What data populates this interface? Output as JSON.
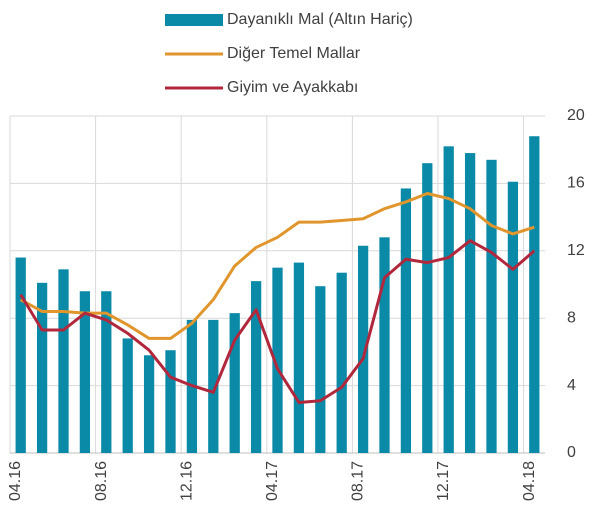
{
  "chart_data": {
    "type": "bar_line",
    "categories": [
      "04.16",
      null,
      null,
      null,
      "08.16",
      null,
      null,
      null,
      "12.16",
      null,
      null,
      null,
      "04.17",
      null,
      null,
      null,
      "08.17",
      null,
      null,
      null,
      "12.17",
      null,
      null,
      null,
      "04.18"
    ],
    "series": [
      {
        "name": "Dayanıklı Mal (Altın Hariç)",
        "type": "bar",
        "color": "#0b8aa8",
        "values": [
          11.6,
          10.1,
          10.9,
          9.6,
          9.6,
          6.8,
          5.8,
          6.1,
          7.9,
          7.9,
          8.3,
          10.2,
          11.0,
          11.3,
          9.9,
          10.7,
          12.3,
          12.8,
          15.7,
          17.2,
          18.2,
          17.8,
          17.4,
          16.1,
          18.8
        ]
      },
      {
        "name": "Diğer Temel Mallar",
        "type": "line",
        "color": "#e0962c",
        "values": [
          9.1,
          8.4,
          8.4,
          8.3,
          8.3,
          7.6,
          6.8,
          6.8,
          7.7,
          9.1,
          11.1,
          12.2,
          12.8,
          13.7,
          13.7,
          13.8,
          13.9,
          14.5,
          14.9,
          15.4,
          15.1,
          14.5,
          13.5,
          13.0,
          13.4
        ]
      },
      {
        "name": "Giyim ve Ayakkabı",
        "type": "line",
        "color": "#b1283d",
        "values": [
          9.4,
          7.3,
          7.3,
          8.3,
          7.9,
          7.1,
          6.1,
          4.5,
          4.0,
          3.6,
          6.7,
          8.5,
          5.0,
          3.0,
          3.1,
          3.9,
          5.6,
          10.4,
          11.5,
          11.3,
          11.6,
          12.6,
          11.9,
          10.9,
          12.0
        ]
      }
    ],
    "ylim": [
      0,
      20
    ],
    "yticks": [
      0,
      4,
      8,
      12,
      16,
      20
    ],
    "y_axis_side": "right",
    "grid": true,
    "legend": "top"
  }
}
